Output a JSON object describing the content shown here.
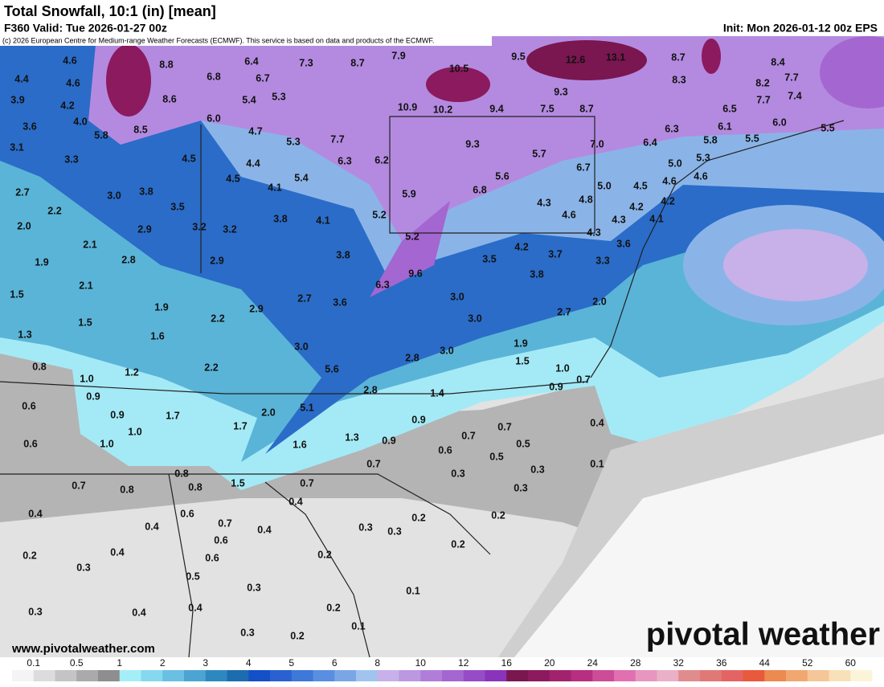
{
  "header": {
    "title": "Total Snowfall, 10:1 (in) [mean]",
    "valid": "F360 Valid: Tue 2026-01-27 00z",
    "init": "Init: Mon 2026-01-12 00z EPS",
    "copyright": "(c) 2026 European Centre for Medium-range Weather Forecasts (ECMWF). This service is based on data and products of the ECMWF."
  },
  "map_labels": [
    "4.6",
    "8.8",
    "6.4",
    "7.3",
    "8.7",
    "7.9",
    "9.5",
    "12.6",
    "13.1",
    "8.7",
    "8.4",
    "4.4",
    "4.6",
    "6.8",
    "6.7",
    "10.5",
    "8.3",
    "8.2",
    "7.7",
    "3.9",
    "4.2",
    "8.6",
    "5.4",
    "5.3",
    "9.3",
    "7.7",
    "7.4",
    "3.6",
    "4.0",
    "6.0",
    "10.9",
    "10.2",
    "9.4",
    "7.5",
    "8.7",
    "6.5",
    "3.1",
    "5.8",
    "8.5",
    "4.7",
    "5.3",
    "7.7",
    "6.3",
    "6.1",
    "6.0",
    "5.5",
    "3.3",
    "4.5",
    "4.4",
    "6.3",
    "6.2",
    "9.3",
    "5.7",
    "7.0",
    "6.4",
    "5.8",
    "5.5",
    "2.7",
    "3.0",
    "3.8",
    "4.5",
    "4.1",
    "5.4",
    "5.6",
    "6.7",
    "5.0",
    "5.3",
    "2.2",
    "3.5",
    "5.9",
    "6.8",
    "5.0",
    "4.5",
    "4.6",
    "4.6",
    "2.0",
    "2.9",
    "3.2",
    "3.2",
    "3.8",
    "4.1",
    "5.2",
    "4.3",
    "4.8",
    "4.2",
    "4.2",
    "2.1",
    "5.2",
    "4.6",
    "4.3",
    "4.1",
    "1.9",
    "2.8",
    "2.9",
    "3.8",
    "4.2",
    "4.3",
    "3.5",
    "3.7",
    "3.6",
    "3.3",
    "1.5",
    "2.1",
    "6.3",
    "9.6",
    "3.8",
    "1.9",
    "2.9",
    "2.7",
    "3.6",
    "3.0",
    "2.0",
    "1.5",
    "2.2",
    "3.0",
    "2.7",
    "1.3",
    "1.6",
    "3.0",
    "1.9",
    "0.8",
    "1.2",
    "2.2",
    "5.6",
    "2.8",
    "3.0",
    "1.5",
    "1.0",
    "1.0",
    "0.7",
    "0.9",
    "0.9",
    "2.8",
    "1.4",
    "0.6",
    "0.9",
    "1.7",
    "2.0",
    "5.1",
    "0.9",
    "0.4",
    "1.0",
    "1.7",
    "1.3",
    "0.9",
    "0.7",
    "0.7",
    "0.6",
    "1.0",
    "1.6",
    "0.6",
    "0.5",
    "0.5",
    "0.3",
    "0.1",
    "0.7",
    "0.3",
    "0.8",
    "1.5",
    "0.7",
    "0.3",
    "0.7",
    "0.8",
    "0.8",
    "0.4",
    "0.4",
    "0.6",
    "0.2",
    "0.2",
    "0.4",
    "0.7",
    "0.4",
    "0.3",
    "0.3",
    "0.6",
    "0.4",
    "0.2",
    "0.2",
    "0.6",
    "0.2",
    "0.3",
    "0.5",
    "0.3",
    "0.1",
    "0.4",
    "0.4",
    "0.2",
    "0.3",
    "0.1",
    "0.3",
    "0.2"
  ],
  "footer": {
    "website": "www.pivotalweather.com",
    "logo": "pivotal weather"
  },
  "colorbar": {
    "labels": [
      "0.1",
      "0.5",
      "1",
      "2",
      "3",
      "4",
      "5",
      "6",
      "8",
      "10",
      "12",
      "16",
      "20",
      "24",
      "28",
      "32",
      "36",
      "44",
      "52",
      "60"
    ],
    "colors": [
      "#f4f4f4",
      "#dcdcdc",
      "#c4c4c4",
      "#aaaaaa",
      "#8e8e8e",
      "#a4eef8",
      "#86d8ee",
      "#6ac0e2",
      "#4ca4d2",
      "#2e88c0",
      "#1c6cb0",
      "#1450c8",
      "#2a60d0",
      "#3e78d8",
      "#5a8ee0",
      "#7aa6e6",
      "#a0c4ee",
      "#c8b0e8",
      "#bc98e0",
      "#b07ed8",
      "#a466d0",
      "#964cc6",
      "#8a34bc",
      "#7a1650",
      "#8c1a5e",
      "#a2226e",
      "#b82e80",
      "#cc4c98",
      "#e070b0",
      "#e896c0",
      "#eab0c8",
      "#e08c8c",
      "#e07878",
      "#e46464",
      "#e85a3c",
      "#ec8a50",
      "#f0a870",
      "#f4c698",
      "#f8e0b8",
      "#fcf4d8"
    ]
  }
}
